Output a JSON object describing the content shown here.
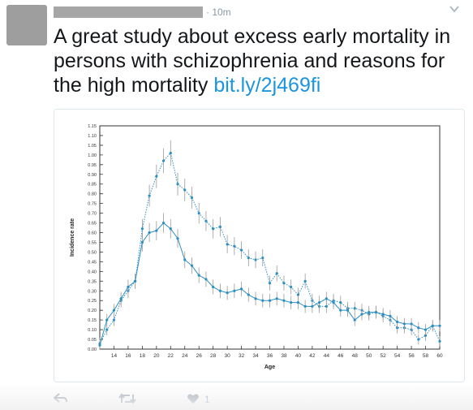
{
  "tweet": {
    "time": "· 10m",
    "text": "A great study about excess early mortality in persons with schizophrenia and reasons for the high mortality ",
    "link": "bit.ly/2j469fi",
    "like_count": "1"
  },
  "icons": {
    "reply": "reply-icon",
    "retweet": "retweet-icon",
    "like": "heart-icon",
    "caret": "chevron-down-icon"
  },
  "colors": {
    "series": "#2c8fc4",
    "link": "#1b95e0",
    "action": "#a8b3bd"
  },
  "chart_data": {
    "type": "line",
    "xlabel": "Age",
    "ylabel": "Incidence rate",
    "xlim": [
      12,
      60
    ],
    "ylim": [
      0,
      1.15
    ],
    "x_ticks": [
      14,
      16,
      18,
      20,
      22,
      24,
      26,
      28,
      30,
      32,
      34,
      36,
      38,
      40,
      42,
      44,
      46,
      48,
      50,
      52,
      54,
      56,
      58,
      60
    ],
    "y_ticks": [
      "0.00",
      "0.05",
      "0.10",
      "0.15",
      "0.20",
      "0.25",
      "0.30",
      "0.35",
      "0.40",
      "0.45",
      "0.50",
      "0.55",
      "0.60",
      "0.65",
      "0.70",
      "0.75",
      "0.80",
      "0.85",
      "0.90",
      "0.95",
      "1.00",
      "1.05",
      "1.10",
      "1.15"
    ],
    "x": [
      12,
      13,
      14,
      15,
      16,
      17,
      18,
      19,
      20,
      21,
      22,
      23,
      24,
      25,
      26,
      27,
      28,
      29,
      30,
      31,
      32,
      33,
      34,
      35,
      36,
      37,
      38,
      39,
      40,
      41,
      42,
      43,
      44,
      45,
      46,
      47,
      48,
      49,
      50,
      51,
      52,
      53,
      54,
      55,
      56,
      57,
      58,
      59,
      60
    ],
    "series": [
      {
        "style": "dotted",
        "values": [
          0.03,
          0.1,
          0.15,
          0.25,
          0.3,
          0.35,
          0.62,
          0.79,
          0.89,
          0.97,
          1.01,
          0.85,
          0.82,
          0.78,
          0.7,
          0.66,
          0.62,
          0.63,
          0.54,
          0.53,
          0.51,
          0.47,
          0.46,
          0.47,
          0.34,
          0.39,
          0.34,
          0.32,
          0.28,
          0.35,
          0.25,
          0.22,
          0.22,
          0.25,
          0.24,
          0.21,
          0.21,
          0.2,
          0.18,
          0.19,
          0.17,
          0.15,
          0.11,
          0.11,
          0.1,
          0.05,
          0.07,
          0.12,
          0.04
        ]
      },
      {
        "style": "solid",
        "values": [
          0.02,
          0.15,
          0.2,
          0.26,
          0.32,
          0.35,
          0.55,
          0.6,
          0.61,
          0.65,
          0.62,
          0.57,
          0.46,
          0.43,
          0.38,
          0.36,
          0.32,
          0.3,
          0.29,
          0.3,
          0.31,
          0.28,
          0.26,
          0.25,
          0.25,
          0.26,
          0.25,
          0.24,
          0.24,
          0.22,
          0.22,
          0.24,
          0.26,
          0.24,
          0.2,
          0.2,
          0.15,
          0.18,
          0.19,
          0.19,
          0.18,
          0.17,
          0.14,
          0.13,
          0.13,
          0.11,
          0.1,
          0.12,
          0.12
        ]
      }
    ]
  }
}
